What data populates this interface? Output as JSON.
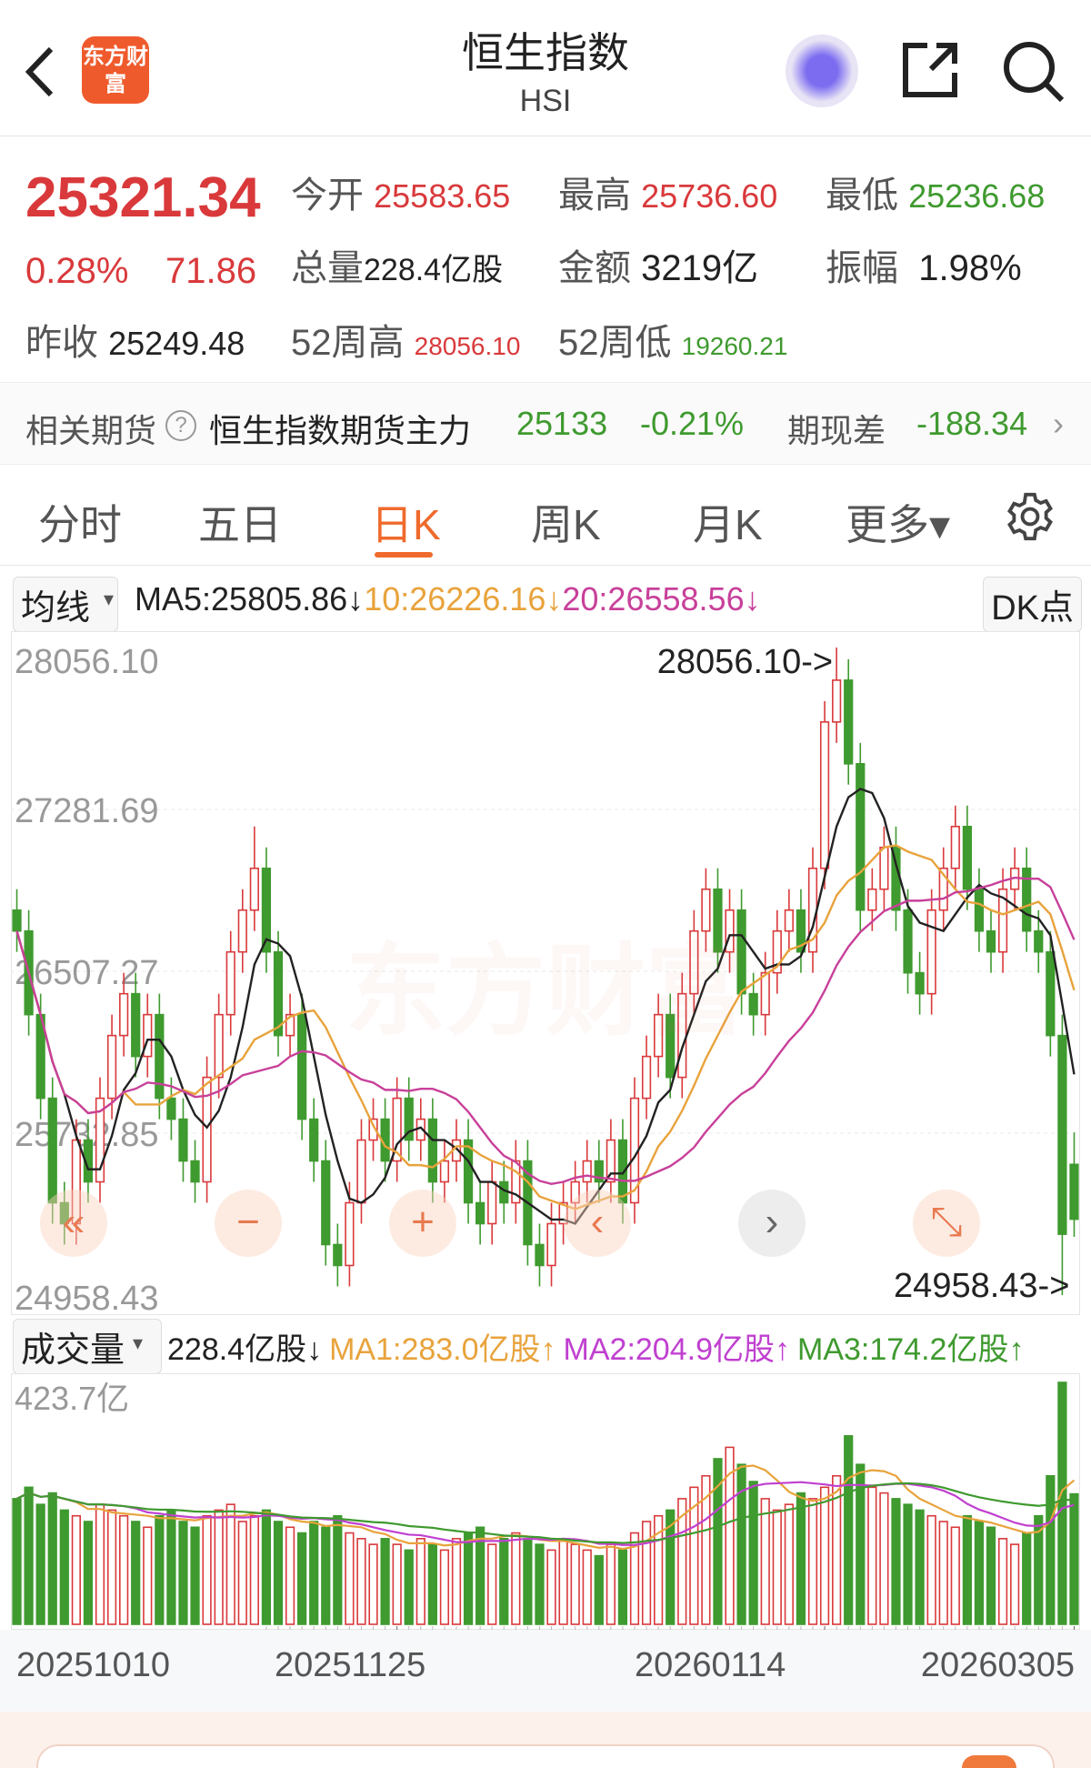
{
  "header": {
    "title": "恒生指数",
    "subtitle": "HSI",
    "logo_text": "东方财富",
    "icons": [
      "back-arrow-icon",
      "robot-avatar-icon",
      "share-icon",
      "search-icon"
    ]
  },
  "quote": {
    "price": "25321.34",
    "change_pct": "0.28%",
    "change": "71.86",
    "open_label": "今开",
    "open": "25583.65",
    "high_label": "最高",
    "high": "25736.60",
    "low_label": "最低",
    "low": "25236.68",
    "volume_label": "总量",
    "volume": "228.4亿股",
    "amount_label": "金额",
    "amount": "3219亿",
    "amplitude_label": "振幅",
    "amplitude": "1.98%",
    "prev_close_label": "昨收",
    "prev_close": "25249.48",
    "high52_label": "52周高",
    "high52": "28056.10",
    "low52_label": "52周低",
    "low52": "19260.21"
  },
  "futures": {
    "label": "相关期货",
    "name": "恒生指数期货主力",
    "price": "25133",
    "change_pct": "-0.21%",
    "basis_label": "期现差",
    "basis": "-188.34"
  },
  "tabs": [
    {
      "label": "分时"
    },
    {
      "label": "五日"
    },
    {
      "label": "日K",
      "active": true
    },
    {
      "label": "周K"
    },
    {
      "label": "月K"
    },
    {
      "label": "更多▾"
    }
  ],
  "ma_legend": {
    "selector": "均线",
    "ma5": "MA5:25805.86↓",
    "ma10": "10:26226.16↓",
    "ma20": "20:26558.56↓",
    "dk": "DK点"
  },
  "vol_legend": {
    "selector": "成交量",
    "vol": "228.4亿股↓",
    "ma1": "MA1:283.0亿股↑",
    "ma2": "MA2:204.9亿股↑",
    "ma3": "MA3:174.2亿股↑"
  },
  "colors": {
    "up": "#d9393b",
    "down": "#3f9a2f",
    "ma5": "#222222",
    "ma10": "#e8a33c",
    "ma20": "#c8409a",
    "vma2": "#c040d0",
    "accent": "#ef6a2c"
  },
  "chart_data": {
    "type": "candlestick",
    "y_ticks": [
      "28056.10",
      "27281.69",
      "26507.27",
      "25732.85",
      "24958.43"
    ],
    "ylim": [
      24958.43,
      28056.1
    ],
    "max_label": "28056.10->",
    "min_label": "24958.43->",
    "x_labels": [
      "20251010",
      "20251125",
      "20260114",
      "20260305"
    ],
    "watermark": "东方财富",
    "open": [
      26800,
      26700,
      26300,
      25900,
      25400,
      25300,
      25700,
      25500,
      25900,
      26200,
      26400,
      26100,
      26300,
      25900,
      25800,
      25600,
      25500,
      26000,
      26300,
      26600,
      26800,
      27000,
      26600,
      26200,
      26300,
      25800,
      25600,
      25200,
      25100,
      25400,
      25700,
      25800,
      25600,
      25900,
      25700,
      25800,
      25500,
      25600,
      25700,
      25400,
      25300,
      25500,
      25400,
      25600,
      25200,
      25100,
      25300,
      25400,
      25500,
      25600,
      25500,
      25700,
      25400,
      25900,
      26100,
      26300,
      26000,
      26400,
      26700,
      26900,
      26600,
      26800,
      26400,
      26300,
      26500,
      26700,
      26800,
      26600,
      27000,
      27700,
      27900,
      27500,
      26800,
      26900,
      27100,
      26800,
      26500,
      26400,
      26800,
      27000,
      27200,
      26900,
      26700,
      26600,
      26900,
      27000,
      26700,
      26600,
      26200,
      25583.65
    ],
    "close": [
      26700,
      26300,
      25900,
      25400,
      25300,
      25700,
      25500,
      25900,
      26200,
      26400,
      26100,
      26300,
      25900,
      25800,
      25600,
      25500,
      26000,
      26300,
      26600,
      26800,
      27000,
      26600,
      26200,
      26300,
      25800,
      25600,
      25200,
      25100,
      25400,
      25700,
      25800,
      25600,
      25900,
      25700,
      25800,
      25500,
      25600,
      25700,
      25400,
      25300,
      25500,
      25400,
      25600,
      25200,
      25100,
      25300,
      25400,
      25500,
      25600,
      25500,
      25700,
      25400,
      25900,
      26100,
      26300,
      26000,
      26400,
      26700,
      26900,
      26600,
      26800,
      26400,
      26300,
      26500,
      26700,
      26800,
      26600,
      27000,
      27700,
      27900,
      27500,
      26800,
      26900,
      27100,
      26800,
      26500,
      26400,
      26800,
      27000,
      27200,
      26900,
      26700,
      26600,
      26900,
      27000,
      26700,
      26600,
      26200,
      25249.48,
      25321.34
    ],
    "high": [
      26900,
      26800,
      26400,
      26000,
      25500,
      25800,
      25800,
      26000,
      26300,
      26500,
      26500,
      26400,
      26400,
      26000,
      25900,
      25700,
      26100,
      26400,
      26700,
      26900,
      27200,
      27100,
      26700,
      26400,
      26400,
      25900,
      25700,
      25300,
      25500,
      25800,
      25900,
      25900,
      26000,
      26000,
      25900,
      25900,
      25700,
      25800,
      25800,
      25500,
      25600,
      25600,
      25700,
      25700,
      25300,
      25400,
      25500,
      25600,
      25700,
      25700,
      25800,
      25800,
      26000,
      26200,
      26400,
      26400,
      26500,
      26800,
      27000,
      27000,
      26900,
      26900,
      26500,
      26600,
      26800,
      26900,
      26900,
      27100,
      27800,
      28056.1,
      28000,
      27600,
      27000,
      27200,
      27200,
      26900,
      26600,
      26900,
      27100,
      27300,
      27300,
      27000,
      26800,
      27000,
      27100,
      27100,
      26800,
      26700,
      26300,
      25736.6
    ],
    "low": [
      26600,
      26200,
      25800,
      25300,
      25200,
      25200,
      25400,
      25400,
      25800,
      26100,
      26000,
      26000,
      25800,
      25700,
      25500,
      25400,
      25400,
      25900,
      26200,
      26500,
      26700,
      26500,
      26100,
      26100,
      25700,
      25500,
      25100,
      25000,
      25000,
      25300,
      25600,
      25500,
      25500,
      25600,
      25600,
      25400,
      25400,
      25500,
      25300,
      25200,
      25200,
      25300,
      25300,
      25100,
      25000,
      25000,
      25200,
      25300,
      25400,
      25400,
      25400,
      25300,
      25300,
      25800,
      26000,
      25900,
      25900,
      26300,
      26600,
      26500,
      26500,
      26300,
      26200,
      26200,
      26400,
      26600,
      26500,
      26500,
      26900,
      27600,
      27400,
      26700,
      26700,
      26800,
      26700,
      26400,
      26300,
      26300,
      26700,
      26900,
      26800,
      26600,
      26500,
      26500,
      26800,
      26600,
      26500,
      26100,
      24958.43,
      25236.68
    ],
    "volume": [
      220,
      240,
      210,
      230,
      200,
      190,
      180,
      210,
      200,
      190,
      180,
      170,
      190,
      200,
      180,
      170,
      190,
      200,
      210,
      180,
      190,
      200,
      180,
      170,
      160,
      180,
      170,
      190,
      160,
      150,
      140,
      150,
      140,
      130,
      150,
      140,
      130,
      150,
      160,
      170,
      140,
      150,
      160,
      150,
      140,
      130,
      150,
      140,
      130,
      120,
      140,
      130,
      160,
      180,
      190,
      200,
      220,
      240,
      260,
      290,
      310,
      280,
      250,
      220,
      200,
      210,
      230,
      220,
      240,
      260,
      330,
      280,
      240,
      230,
      220,
      210,
      200,
      190,
      180,
      170,
      190,
      180,
      170,
      150,
      140,
      160,
      190,
      260,
      423.7,
      228.4
    ],
    "volume_max_label": "423.7亿",
    "ma_periods": [
      5,
      10,
      20
    ],
    "vol_ma_periods": [
      5,
      10,
      20
    ]
  },
  "overlay_buttons": [
    "«",
    "−",
    "+",
    "‹",
    "›",
    "⤡"
  ],
  "search_placeholder": ""
}
